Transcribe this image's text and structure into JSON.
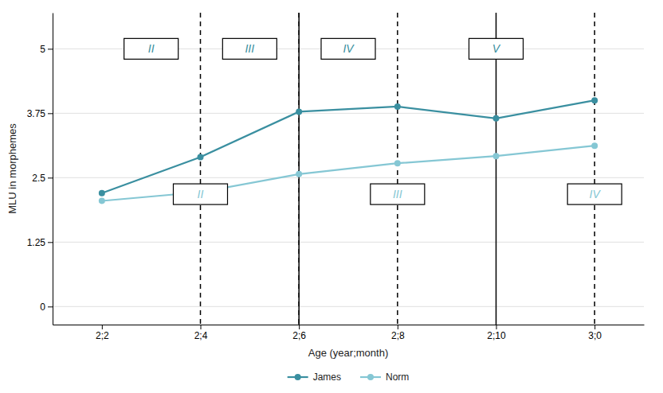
{
  "chart_data": {
    "type": "line",
    "x_label": "Age (year;month)",
    "y_label": "MLU in morphemes",
    "categories": [
      "2;2",
      "2;4",
      "2;6",
      "2;8",
      "2;10",
      "3;0"
    ],
    "series": [
      {
        "name": "James",
        "color": "#3a8fa0",
        "marker": "circle",
        "values": [
          2.2,
          2.9,
          3.78,
          3.88,
          3.65,
          4.0
        ]
      },
      {
        "name": "Norm",
        "color": "#85c7d4",
        "marker": "circle",
        "values": [
          2.05,
          2.22,
          2.57,
          2.78,
          2.92,
          3.12
        ]
      }
    ],
    "ylim": [
      -0.35,
      5.7
    ],
    "yticks": [
      0,
      1.25,
      2.5,
      3.75,
      5
    ],
    "grid": true,
    "legend": "bottom",
    "vertical_lines": [
      {
        "x": 1,
        "line_style": "dashed"
      },
      {
        "x": 2,
        "line_style": "dashed"
      },
      {
        "x": 3,
        "line_style": "dashed"
      },
      {
        "x": 5,
        "line_style": "dashed"
      },
      {
        "x": 2,
        "line_style": "solid"
      },
      {
        "x": 4,
        "line_style": "solid"
      }
    ],
    "annotations": [
      {
        "text": "II",
        "x": 0.5,
        "y": 5.0,
        "color": "#3a8fa0"
      },
      {
        "text": "III",
        "x": 1.5,
        "y": 5.0,
        "color": "#3a8fa0"
      },
      {
        "text": "IV",
        "x": 2.5,
        "y": 5.0,
        "color": "#3a8fa0"
      },
      {
        "text": "V",
        "x": 4.0,
        "y": 5.0,
        "color": "#3a8fa0"
      },
      {
        "text": "II",
        "x": 1.0,
        "y": 2.18,
        "color": "#85c7d4"
      },
      {
        "text": "III",
        "x": 3.0,
        "y": 2.18,
        "color": "#85c7d4"
      },
      {
        "text": "IV",
        "x": 5.0,
        "y": 2.18,
        "color": "#85c7d4"
      }
    ]
  }
}
